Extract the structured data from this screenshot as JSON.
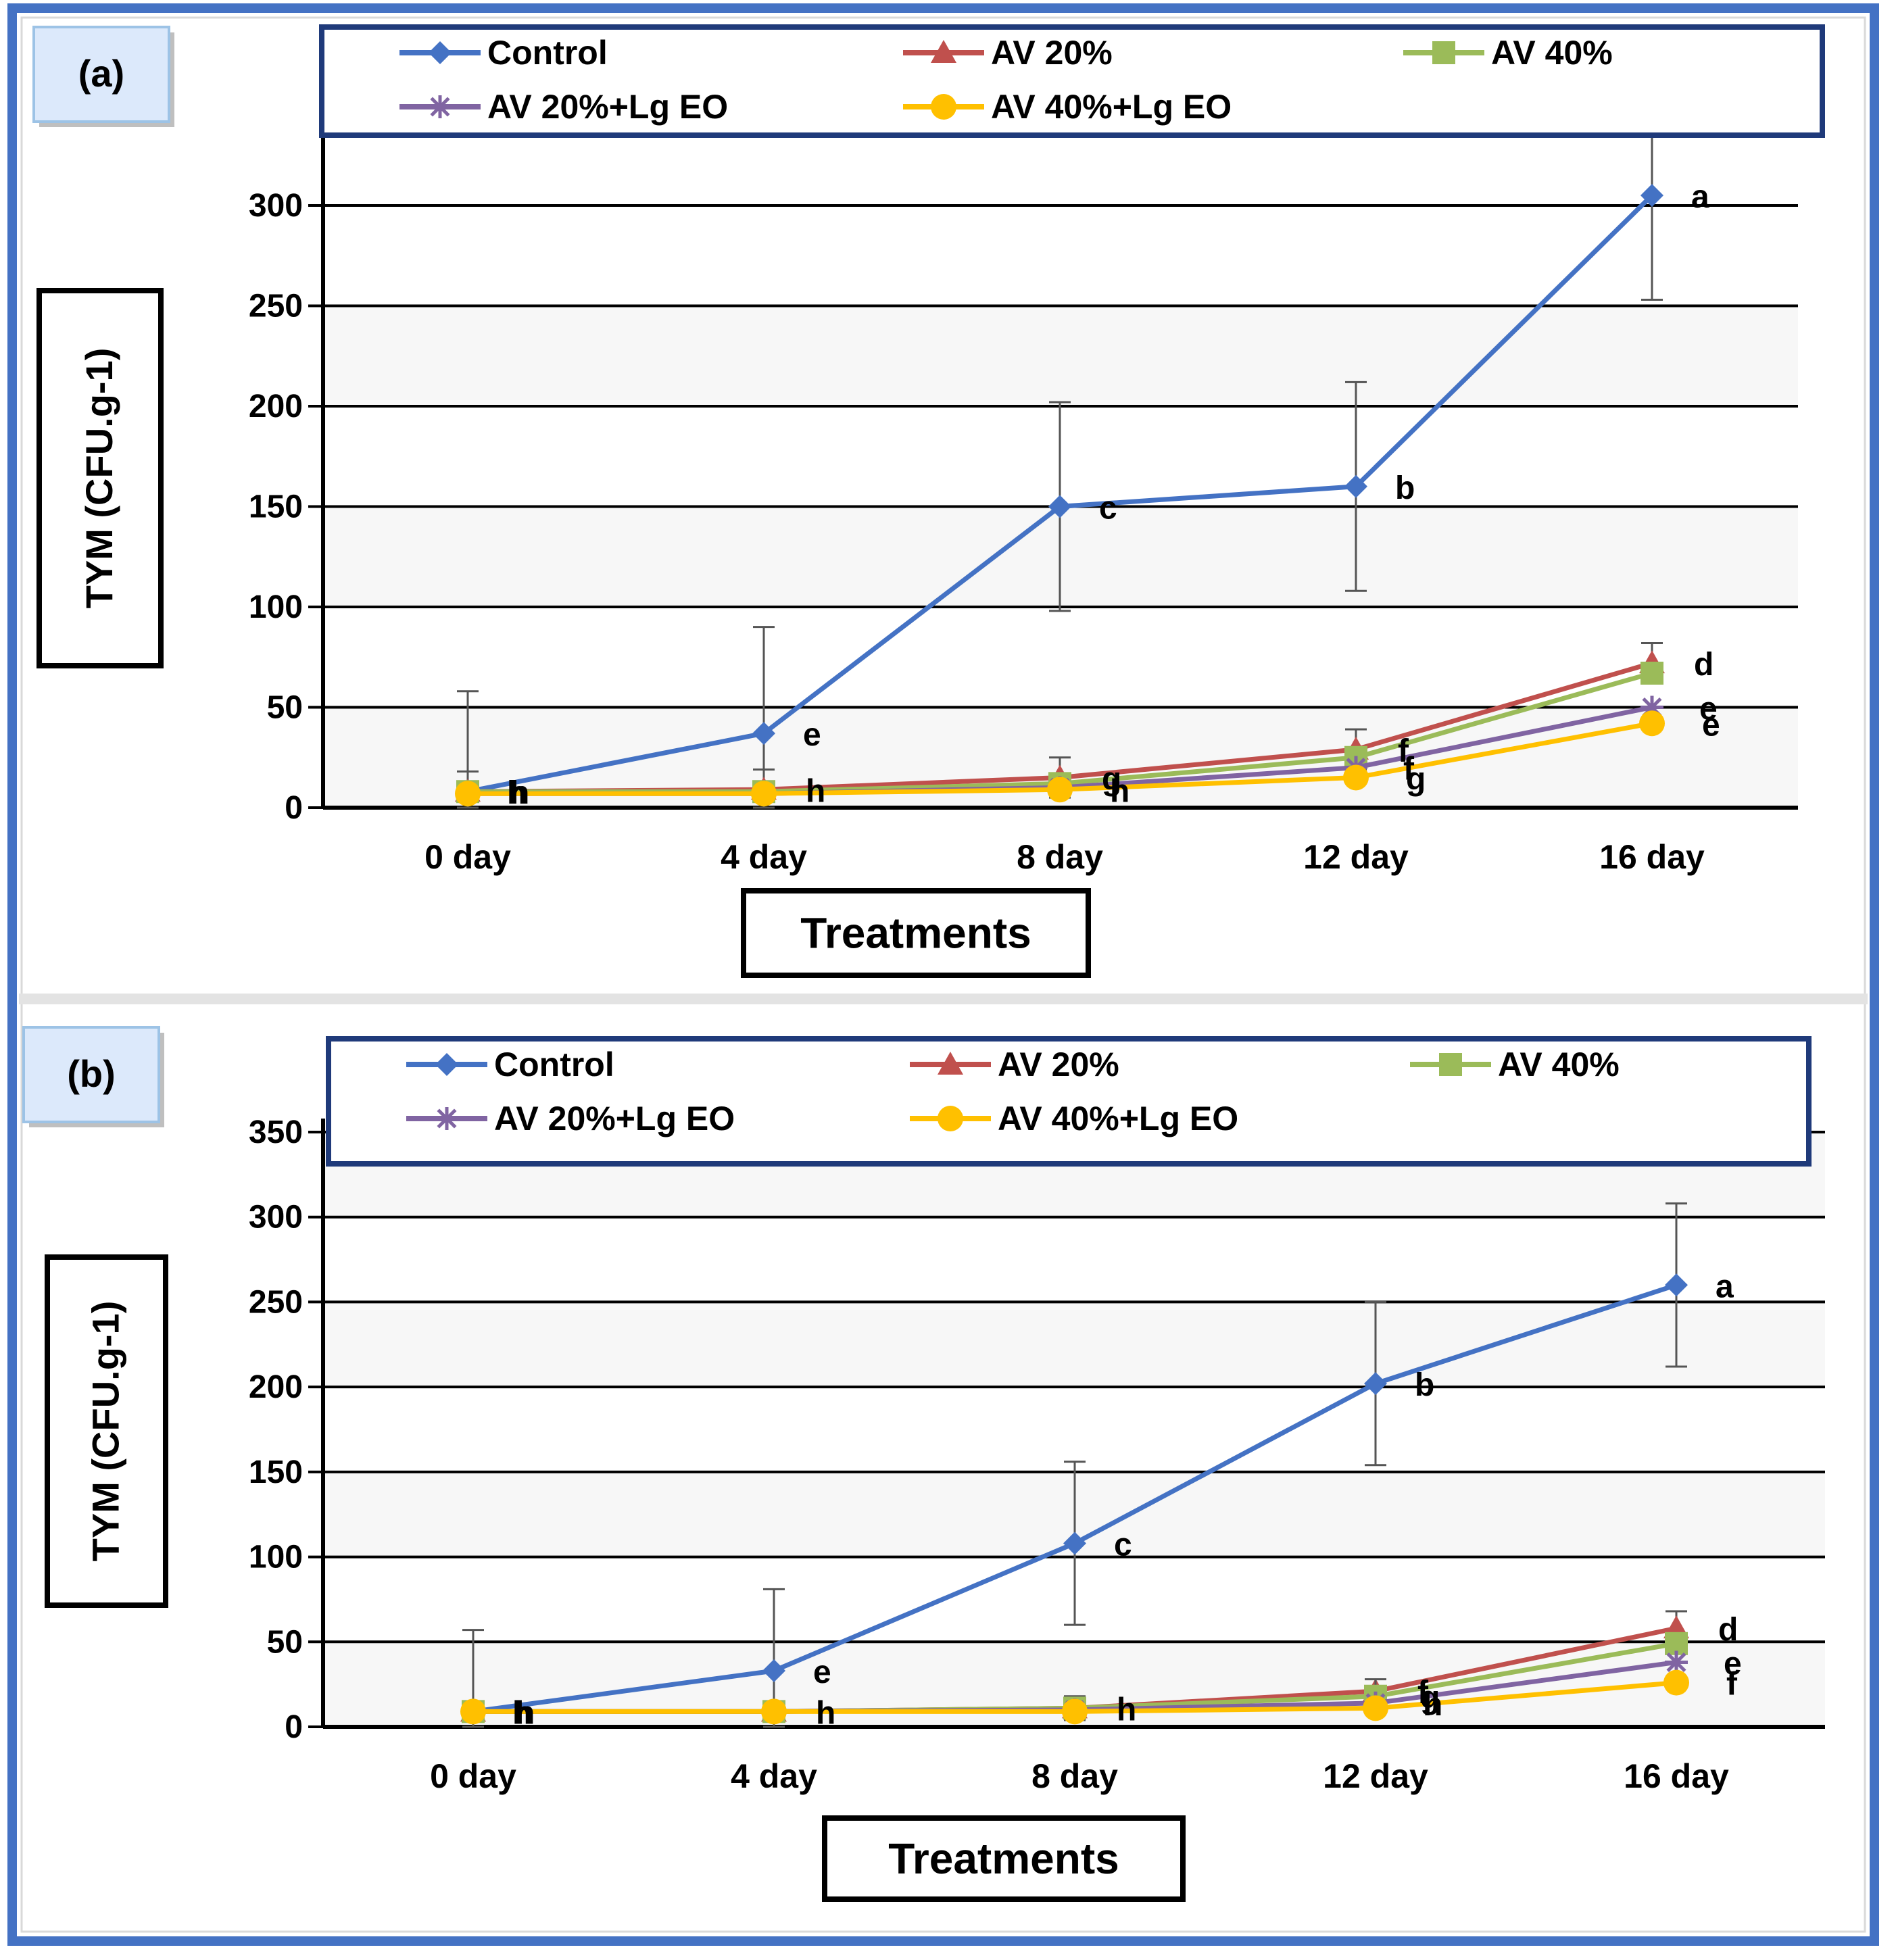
{
  "chart_data": [
    {
      "panel_label": "(a)",
      "type": "line",
      "categories": [
        "0 day",
        "4 day",
        "8 day",
        "12 day",
        "16 day"
      ],
      "xlabel": "Treatments",
      "ylabel": "TYM (CFU.g-1)",
      "ylim": [
        0,
        335
      ],
      "yticks": [
        0,
        50,
        100,
        150,
        200,
        250,
        300
      ],
      "grid": true,
      "legend_position": "top",
      "series": [
        {
          "name": "Control",
          "color": "#4472C4",
          "marker": "diamond",
          "values": [
            8,
            37,
            150,
            160,
            305
          ],
          "errors": [
            50,
            53,
            52,
            52,
            52
          ],
          "letters": [
            "h",
            "e",
            "c",
            "b",
            "a"
          ]
        },
        {
          "name": "AV 20%",
          "color": "#C0504D",
          "marker": "triangle",
          "values": [
            8,
            9,
            15,
            29,
            72
          ],
          "errors": [
            10,
            10,
            10,
            10,
            10
          ],
          "letters": [
            "h",
            "h",
            "g",
            "f",
            "d"
          ]
        },
        {
          "name": "AV 40%",
          "color": "#9BBB59",
          "marker": "square",
          "values": [
            8,
            8,
            12,
            25,
            67
          ],
          "errors": [
            0,
            0,
            0,
            0,
            0
          ],
          "letters": [
            "",
            "",
            "",
            "",
            ""
          ]
        },
        {
          "name": "AV 20%+Lg EO",
          "color": "#8064A2",
          "marker": "star",
          "values": [
            7,
            7,
            10,
            20,
            50
          ],
          "errors": [
            0,
            0,
            0,
            0,
            0
          ],
          "letters": [
            "",
            "",
            "",
            "f",
            "e"
          ]
        },
        {
          "name": "AV 40%+Lg EO",
          "color": "#FFC000",
          "marker": "circle",
          "values": [
            7,
            7,
            9,
            15,
            42
          ],
          "errors": [
            0,
            0,
            0,
            0,
            0
          ],
          "letters": [
            "",
            "",
            "h",
            "g",
            "e"
          ]
        }
      ]
    },
    {
      "panel_label": "(b)",
      "type": "line",
      "categories": [
        "0 day",
        "4 day",
        "8 day",
        "12 day",
        "16 day"
      ],
      "xlabel": "Treatments",
      "ylabel": "TYM (CFU.g-1)",
      "ylim": [
        0,
        350
      ],
      "yticks": [
        0,
        50,
        100,
        150,
        200,
        250,
        300,
        350
      ],
      "grid": true,
      "legend_position": "top",
      "series": [
        {
          "name": "Control",
          "color": "#4472C4",
          "marker": "diamond",
          "values": [
            9,
            33,
            108,
            202,
            260
          ],
          "errors": [
            48,
            48,
            48,
            48,
            48
          ],
          "letters": [
            "h",
            "e",
            "c",
            "b",
            "a"
          ]
        },
        {
          "name": "AV 20%",
          "color": "#C0504D",
          "marker": "triangle",
          "values": [
            9,
            9,
            11,
            21,
            58
          ],
          "errors": [
            0,
            0,
            0,
            0,
            10
          ],
          "letters": [
            "h",
            "h",
            "h",
            "f",
            "d"
          ]
        },
        {
          "name": "AV 40%",
          "color": "#9BBB59",
          "marker": "square",
          "values": [
            9,
            9,
            11,
            18,
            49
          ],
          "errors": [
            0,
            0,
            7,
            10,
            0
          ],
          "letters": [
            "",
            "",
            "",
            "g",
            ""
          ]
        },
        {
          "name": "AV 20%+Lg EO",
          "color": "#8064A2",
          "marker": "star",
          "values": [
            9,
            9,
            10,
            14,
            38
          ],
          "errors": [
            0,
            0,
            0,
            0,
            0
          ],
          "letters": [
            "",
            "",
            "",
            "h",
            "e"
          ]
        },
        {
          "name": "AV 40%+Lg EO",
          "color": "#FFC000",
          "marker": "circle",
          "values": [
            9,
            9,
            9,
            11,
            26
          ],
          "errors": [
            0,
            0,
            0,
            0,
            0
          ],
          "letters": [
            "",
            "",
            "",
            "",
            "f"
          ]
        }
      ]
    }
  ]
}
